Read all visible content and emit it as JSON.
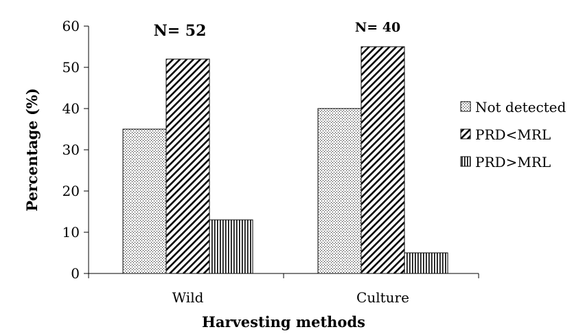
{
  "chart_data": {
    "type": "bar",
    "categories": [
      "Wild",
      "Culture"
    ],
    "series": [
      {
        "name": "Not detected",
        "values": [
          35,
          40
        ],
        "pattern": "dots"
      },
      {
        "name": "PRD<MRL",
        "values": [
          52,
          55
        ],
        "pattern": "diagonal-hatch"
      },
      {
        "name": "PRD>MRL",
        "values": [
          13,
          5
        ],
        "pattern": "vertical-lines"
      }
    ],
    "xlabel": "Harvesting methods",
    "ylabel": "Percentage (%)",
    "ylim": [
      0,
      60
    ],
    "yticks": [
      0,
      10,
      20,
      30,
      40,
      50,
      60
    ],
    "annotations": [
      "N= 52",
      "N= 40"
    ],
    "legend_position": "right",
    "grid": false,
    "bar_fill": "#ffffff",
    "stroke_color": "#000000"
  }
}
